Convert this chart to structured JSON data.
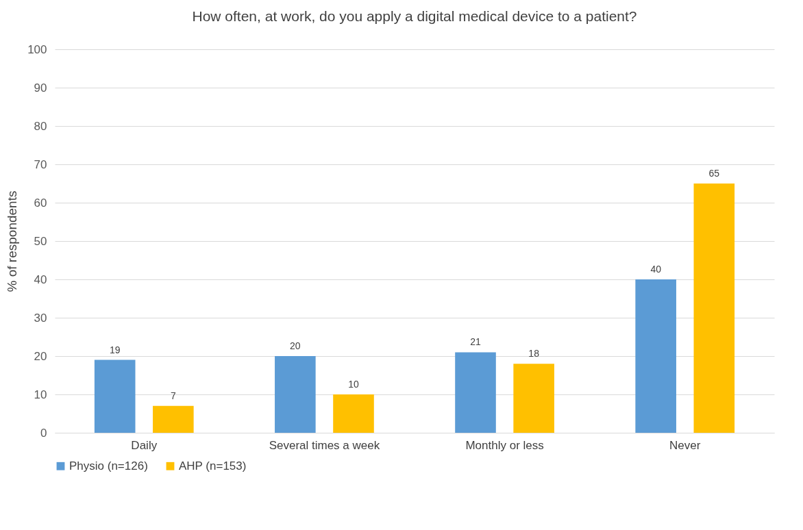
{
  "chart_data": {
    "type": "bar",
    "title": "How often, at work, do you apply a digital medical device to a patient?",
    "ylabel": "% of respondents",
    "categories": [
      "Daily",
      "Several times a week",
      "Monthly or less",
      "Never"
    ],
    "series": [
      {
        "name": "Physio (n=126)",
        "color": "#5b9bd5",
        "values": [
          19,
          20,
          21,
          40
        ]
      },
      {
        "name": "AHP (n=153)",
        "color": "#ffc000",
        "values": [
          7,
          10,
          18,
          65
        ]
      }
    ],
    "ylim": [
      0,
      100
    ],
    "yticks": [
      0,
      10,
      20,
      30,
      40,
      50,
      60,
      70,
      80,
      90,
      100
    ],
    "grid": "y",
    "legend": "bottom",
    "data_labels": true
  }
}
